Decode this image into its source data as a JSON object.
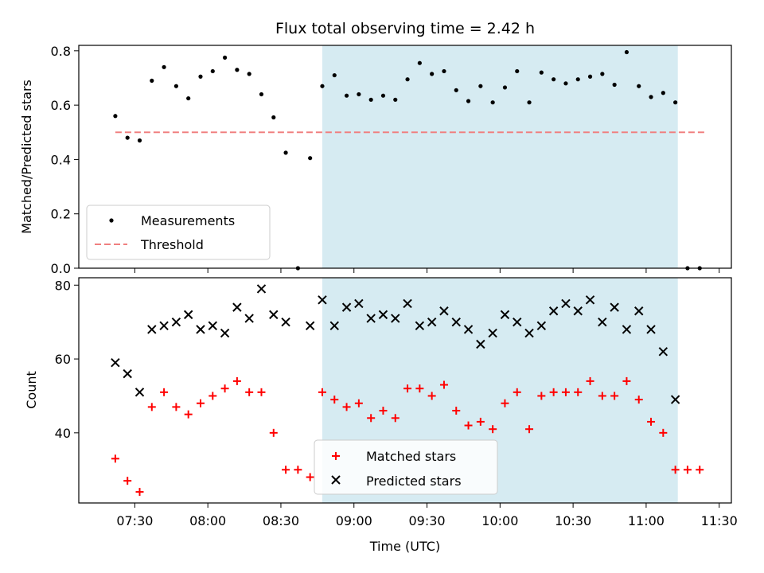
{
  "chart_data": {
    "type": "scatter",
    "title": "Flux total observing time = 2.42 h",
    "xlabel": "Time (UTC)",
    "x_ticks": [
      "07:30",
      "08:00",
      "08:30",
      "09:00",
      "09:30",
      "10:00",
      "10:30",
      "11:00",
      "11:30"
    ],
    "shaded_interval": [
      "08:47",
      "11:13"
    ],
    "shade_color": "#add8e6",
    "panels": [
      {
        "ylabel": "Matched/Predicted stars",
        "ylim": [
          0,
          0.82
        ],
        "y_ticks": [
          "0.0",
          "0.2",
          "0.4",
          "0.6",
          "0.8"
        ],
        "legend_position": "lower-left",
        "series": [
          {
            "name": "Measurements",
            "marker": "dot",
            "color": "#000000",
            "x": [
              "07:22",
              "07:27",
              "07:32",
              "07:37",
              "07:42",
              "07:47",
              "07:52",
              "07:57",
              "08:02",
              "08:07",
              "08:12",
              "08:17",
              "08:22",
              "08:27",
              "08:32",
              "08:37",
              "08:42",
              "08:47",
              "08:52",
              "08:57",
              "09:02",
              "09:07",
              "09:12",
              "09:17",
              "09:22",
              "09:27",
              "09:32",
              "09:37",
              "09:42",
              "09:47",
              "09:52",
              "09:57",
              "10:02",
              "10:07",
              "10:12",
              "10:17",
              "10:22",
              "10:27",
              "10:32",
              "10:37",
              "10:42",
              "10:47",
              "10:52",
              "10:57",
              "11:02",
              "11:07",
              "11:12",
              "11:17",
              "11:22"
            ],
            "y": [
              0.56,
              0.48,
              0.47,
              0.69,
              0.74,
              0.67,
              0.625,
              0.705,
              0.725,
              0.775,
              0.73,
              0.715,
              0.64,
              0.555,
              0.425,
              0.0,
              0.405,
              0.67,
              0.71,
              0.635,
              0.64,
              0.62,
              0.635,
              0.62,
              0.695,
              0.755,
              0.715,
              0.725,
              0.655,
              0.615,
              0.67,
              0.61,
              0.665,
              0.725,
              0.61,
              0.72,
              0.695,
              0.68,
              0.695,
              0.705,
              0.715,
              0.675,
              0.795,
              0.67,
              0.63,
              0.645,
              0.61,
              0.0,
              0.0
            ]
          },
          {
            "name": "Threshold",
            "marker": "dashed-line",
            "color": "#f08080",
            "x": [
              "07:22",
              "11:24"
            ],
            "y": [
              0.5,
              0.5
            ]
          }
        ]
      },
      {
        "ylabel": "Count",
        "ylim": [
          21,
          82
        ],
        "y_ticks": [
          "40",
          "60",
          "80"
        ],
        "legend_position": "lower-center",
        "series": [
          {
            "name": "Matched stars",
            "marker": "plus",
            "color": "#ff0000",
            "x": [
              "07:22",
              "07:27",
              "07:32",
              "07:37",
              "07:42",
              "07:47",
              "07:52",
              "07:57",
              "08:02",
              "08:07",
              "08:12",
              "08:17",
              "08:22",
              "08:27",
              "08:32",
              "08:37",
              "08:42",
              "08:47",
              "08:52",
              "08:57",
              "09:02",
              "09:07",
              "09:12",
              "09:17",
              "09:22",
              "09:27",
              "09:32",
              "09:37",
              "09:42",
              "09:47",
              "09:52",
              "09:57",
              "10:02",
              "10:07",
              "10:12",
              "10:17",
              "10:22",
              "10:27",
              "10:32",
              "10:37",
              "10:42",
              "10:47",
              "10:52",
              "10:57",
              "11:02",
              "11:07",
              "11:12",
              "11:17",
              "11:22"
            ],
            "y": [
              33,
              27,
              24,
              47,
              51,
              47,
              45,
              48,
              50,
              52,
              54,
              51,
              51,
              40,
              30,
              30,
              28,
              51,
              49,
              47,
              48,
              44,
              46,
              44,
              52,
              52,
              50,
              53,
              46,
              42,
              43,
              41,
              48,
              51,
              41,
              50,
              51,
              51,
              51,
              54,
              50,
              50,
              54,
              49,
              43,
              40,
              30,
              30,
              30
            ]
          },
          {
            "name": "Predicted stars",
            "marker": "x",
            "color": "#000000",
            "x": [
              "07:22",
              "07:27",
              "07:32",
              "07:37",
              "07:42",
              "07:47",
              "07:52",
              "07:57",
              "08:02",
              "08:07",
              "08:12",
              "08:17",
              "08:22",
              "08:27",
              "08:32",
              "08:42",
              "08:47",
              "08:52",
              "08:57",
              "09:02",
              "09:07",
              "09:12",
              "09:17",
              "09:22",
              "09:27",
              "09:32",
              "09:37",
              "09:42",
              "09:47",
              "09:52",
              "09:57",
              "10:02",
              "10:07",
              "10:12",
              "10:17",
              "10:22",
              "10:27",
              "10:32",
              "10:37",
              "10:42",
              "10:47",
              "10:52",
              "10:57",
              "11:02",
              "11:07",
              "11:12"
            ],
            "y": [
              59,
              56,
              51,
              68,
              69,
              70,
              72,
              68,
              69,
              67,
              74,
              71,
              79,
              72,
              70,
              69,
              76,
              69,
              74,
              75,
              71,
              72,
              71,
              75,
              69,
              70,
              73,
              70,
              68,
              64,
              67,
              72,
              70,
              67,
              69,
              73,
              75,
              73,
              76,
              70,
              74,
              68,
              73,
              68,
              62,
              49
            ]
          }
        ]
      }
    ]
  }
}
